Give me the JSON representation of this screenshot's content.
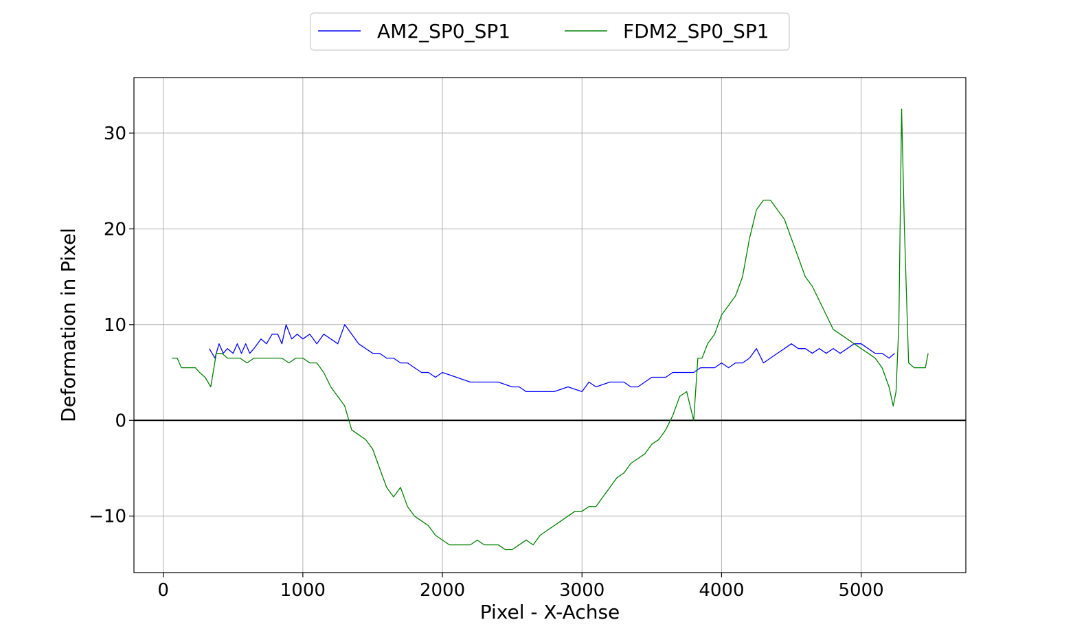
{
  "chart_data": {
    "type": "line",
    "title": "",
    "xlabel": "Pixel - X-Achse",
    "ylabel": "Deformation in Pixel",
    "xlim": [
      -210,
      5750
    ],
    "ylim": [
      -15.9,
      35.8
    ],
    "xticks": [
      0,
      1000,
      2000,
      3000,
      4000,
      5000
    ],
    "yticks": [
      -10,
      0,
      10,
      20,
      30
    ],
    "xtick_labels": [
      "0",
      "1000",
      "2000",
      "3000",
      "4000",
      "5000"
    ],
    "ytick_labels": [
      "−10",
      "0",
      "10",
      "20",
      "30"
    ],
    "grid": true,
    "reference_line_y": 0,
    "legend_position": "top-center",
    "series": [
      {
        "name": "AM2_SP0_SP1",
        "color": "#0000ff",
        "x": [
          330,
          370,
          400,
          430,
          460,
          500,
          530,
          560,
          590,
          620,
          650,
          700,
          740,
          780,
          820,
          850,
          880,
          920,
          960,
          1000,
          1050,
          1100,
          1150,
          1200,
          1250,
          1300,
          1350,
          1400,
          1450,
          1500,
          1550,
          1600,
          1650,
          1700,
          1750,
          1800,
          1850,
          1900,
          1950,
          2000,
          2100,
          2200,
          2300,
          2400,
          2500,
          2550,
          2600,
          2650,
          2700,
          2750,
          2800,
          2900,
          3000,
          3050,
          3100,
          3200,
          3300,
          3350,
          3400,
          3450,
          3500,
          3550,
          3600,
          3650,
          3700,
          3800,
          3850,
          3900,
          3950,
          4000,
          4050,
          4100,
          4150,
          4200,
          4250,
          4300,
          4350,
          4400,
          4450,
          4500,
          4550,
          4600,
          4650,
          4700,
          4750,
          4800,
          4850,
          4900,
          4950,
          5000,
          5050,
          5100,
          5150,
          5200,
          5240
        ],
        "y": [
          7.5,
          6.5,
          8,
          7,
          7.5,
          7,
          8,
          7,
          8,
          7,
          7.5,
          8.5,
          8,
          9,
          9,
          8,
          10,
          8.5,
          9,
          8.5,
          9,
          8,
          9,
          8.5,
          8,
          10,
          9,
          8,
          7.5,
          7,
          7,
          6.5,
          6.5,
          6,
          6,
          5.5,
          5,
          5,
          4.5,
          5,
          4.5,
          4,
          4,
          4,
          3.5,
          3.5,
          3,
          3,
          3,
          3,
          3,
          3.5,
          3,
          4,
          3.5,
          4,
          4,
          3.5,
          3.5,
          4,
          4.5,
          4.5,
          4.5,
          5,
          5,
          5,
          5.5,
          5.5,
          5.5,
          6,
          5.5,
          6,
          6,
          6.5,
          7.5,
          6,
          6.5,
          7,
          7.5,
          8,
          7.5,
          7.5,
          7,
          7.5,
          7,
          7.5,
          7,
          7.5,
          8,
          8,
          7.5,
          7,
          7,
          6.5,
          7
        ]
      },
      {
        "name": "FDM2_SP0_SP1",
        "color": "#008000",
        "x": [
          60,
          100,
          130,
          160,
          200,
          230,
          260,
          300,
          340,
          380,
          420,
          460,
          500,
          550,
          600,
          650,
          700,
          750,
          800,
          850,
          900,
          950,
          1000,
          1050,
          1100,
          1150,
          1200,
          1250,
          1300,
          1350,
          1400,
          1450,
          1500,
          1550,
          1600,
          1650,
          1700,
          1750,
          1800,
          1850,
          1900,
          1950,
          2000,
          2050,
          2100,
          2150,
          2200,
          2250,
          2300,
          2350,
          2400,
          2450,
          2500,
          2550,
          2600,
          2650,
          2700,
          2750,
          2800,
          2850,
          2900,
          2950,
          3000,
          3050,
          3100,
          3150,
          3200,
          3250,
          3300,
          3350,
          3400,
          3450,
          3500,
          3550,
          3600,
          3650,
          3700,
          3750,
          3800,
          3830,
          3860,
          3900,
          3950,
          4000,
          4050,
          4100,
          4150,
          4200,
          4250,
          4300,
          4350,
          4400,
          4450,
          4500,
          4550,
          4600,
          4650,
          4700,
          4750,
          4800,
          4850,
          4900,
          4950,
          5000,
          5050,
          5100,
          5150,
          5200,
          5230,
          5250,
          5270,
          5290,
          5310,
          5340,
          5380,
          5420,
          5460,
          5480
        ],
        "y": [
          6.5,
          6.5,
          5.5,
          5.5,
          5.5,
          5.5,
          5,
          4.5,
          3.5,
          7,
          7,
          6.5,
          6.5,
          6.5,
          6,
          6.5,
          6.5,
          6.5,
          6.5,
          6.5,
          6,
          6.5,
          6.5,
          6,
          6,
          5,
          3.5,
          2.5,
          1.5,
          -1,
          -1.5,
          -2,
          -3,
          -5,
          -7,
          -8,
          -7,
          -9,
          -10,
          -10.5,
          -11,
          -12,
          -12.5,
          -13,
          -13,
          -13,
          -13,
          -12.5,
          -13,
          -13,
          -13,
          -13.5,
          -13.5,
          -13,
          -12.5,
          -13,
          -12,
          -11.5,
          -11,
          -10.5,
          -10,
          -9.5,
          -9.5,
          -9,
          -9,
          -8,
          -7,
          -6,
          -5.5,
          -4.5,
          -4,
          -3.5,
          -2.5,
          -2,
          -1,
          0.5,
          2.5,
          3,
          0,
          6.5,
          6.5,
          8,
          9,
          11,
          12,
          13,
          15,
          19,
          22,
          23,
          23,
          22,
          21,
          19,
          17,
          15,
          14,
          12.5,
          11,
          9.5,
          9,
          8.5,
          8,
          7.5,
          7,
          6.5,
          5.5,
          3.5,
          1.5,
          3,
          10,
          32.5,
          20,
          6,
          5.5,
          5.5,
          5.5,
          7
        ]
      }
    ]
  }
}
